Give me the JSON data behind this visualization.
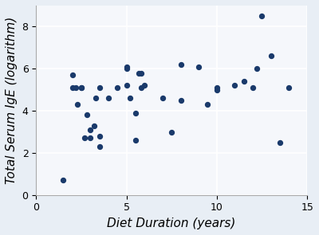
{
  "x": [
    1.5,
    2.0,
    2.0,
    2.2,
    2.3,
    2.5,
    2.5,
    2.7,
    2.8,
    3.0,
    3.0,
    3.2,
    3.3,
    3.5,
    3.5,
    3.5,
    4.0,
    4.5,
    5.0,
    5.0,
    5.0,
    5.2,
    5.5,
    5.5,
    5.7,
    5.8,
    5.8,
    6.0,
    7.0,
    7.5,
    8.0,
    8.0,
    9.0,
    9.5,
    10.0,
    10.0,
    11.0,
    11.5,
    12.0,
    12.2,
    12.5,
    13.0,
    13.5,
    14.0
  ],
  "y": [
    0.7,
    5.7,
    5.1,
    5.1,
    4.3,
    5.1,
    5.1,
    2.7,
    3.8,
    3.1,
    2.7,
    3.3,
    4.6,
    2.8,
    2.3,
    5.1,
    4.6,
    5.1,
    6.0,
    5.2,
    6.1,
    4.6,
    3.9,
    2.6,
    5.8,
    5.8,
    5.1,
    5.2,
    4.6,
    3.0,
    6.2,
    4.5,
    6.1,
    4.3,
    5.0,
    5.1,
    5.2,
    5.4,
    5.1,
    6.0,
    8.5,
    6.6,
    2.5,
    5.1
  ],
  "dot_color": "#1a3a6b",
  "dot_size": 18,
  "xlabel": "Diet Duration (years)",
  "ylabel": "Total Serum IgE (logarithm)",
  "xlim": [
    0,
    15
  ],
  "ylim": [
    0,
    9
  ],
  "xticks": [
    0,
    5,
    10,
    15
  ],
  "yticks": [
    0,
    2,
    4,
    6,
    8
  ],
  "background_color": "#e8eef5",
  "plot_bg_color": "#f5f7fb",
  "grid_color": "#ffffff",
  "tick_fontsize": 9,
  "label_fontsize": 11
}
